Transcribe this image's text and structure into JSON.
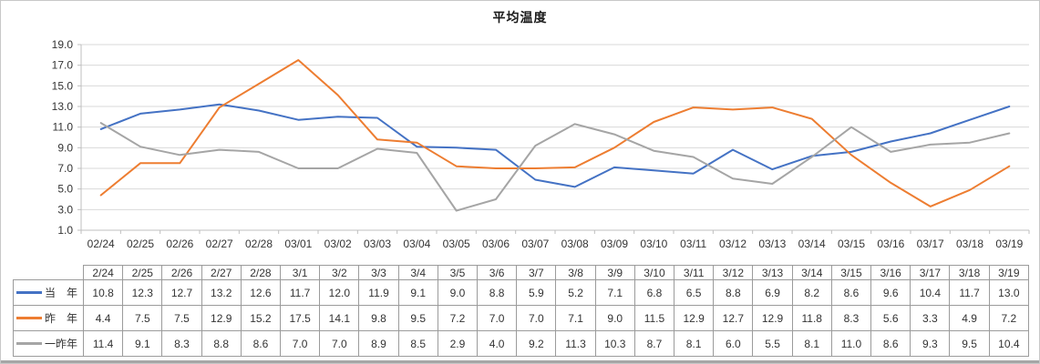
{
  "chart_data": {
    "type": "line",
    "title": "平均温度",
    "x": [
      "02/24",
      "02/25",
      "02/26",
      "02/27",
      "02/28",
      "03/01",
      "03/02",
      "03/03",
      "03/04",
      "03/05",
      "03/06",
      "03/07",
      "03/08",
      "03/09",
      "03/10",
      "03/11",
      "03/12",
      "03/13",
      "03/14",
      "03/15",
      "03/16",
      "03/17",
      "03/18",
      "03/19"
    ],
    "series": [
      {
        "name": "当　年",
        "color": "#4472C4",
        "values": [
          10.8,
          12.3,
          12.7,
          13.2,
          12.6,
          11.7,
          12.0,
          11.9,
          9.1,
          9.0,
          8.8,
          5.9,
          5.2,
          7.1,
          6.8,
          6.5,
          8.8,
          6.9,
          8.2,
          8.6,
          9.6,
          10.4,
          11.7,
          13.0
        ]
      },
      {
        "name": "昨　年",
        "color": "#ED7D31",
        "values": [
          4.4,
          7.5,
          7.5,
          12.9,
          15.2,
          17.5,
          14.1,
          9.8,
          9.5,
          7.2,
          7.0,
          7.0,
          7.1,
          9.0,
          11.5,
          12.9,
          12.7,
          12.9,
          11.8,
          8.3,
          5.6,
          3.3,
          4.9,
          7.2
        ]
      },
      {
        "name": "一昨年",
        "color": "#A5A5A5",
        "values": [
          11.4,
          9.1,
          8.3,
          8.8,
          8.6,
          7.0,
          7.0,
          8.9,
          8.5,
          2.9,
          4.0,
          9.2,
          11.3,
          10.3,
          8.7,
          8.1,
          6.0,
          5.5,
          8.1,
          11.0,
          8.6,
          9.3,
          9.5,
          10.4
        ]
      }
    ],
    "ylim": [
      1.0,
      19.0
    ],
    "ytick_labels": [
      "19.0",
      "17.0",
      "15.0",
      "13.0",
      "11.0",
      "9.0",
      "7.0",
      "5.0",
      "3.0",
      "1.0"
    ],
    "grid": true,
    "legend_position": "data-table-left"
  },
  "data_table": {
    "header": [
      "2/24",
      "2/25",
      "2/26",
      "2/27",
      "2/28",
      "3/1",
      "3/2",
      "3/3",
      "3/4",
      "3/5",
      "3/6",
      "3/7",
      "3/8",
      "3/9",
      "3/10",
      "3/11",
      "3/12",
      "3/13",
      "3/14",
      "3/15",
      "3/16",
      "3/17",
      "3/18",
      "3/19"
    ]
  },
  "colors": {
    "gridline": "#D9D9D9",
    "axis": "#BFBFBF",
    "axis_text": "#333333",
    "table_border": "#9B9B9B",
    "bottom_bar": "#A6A6A6"
  }
}
